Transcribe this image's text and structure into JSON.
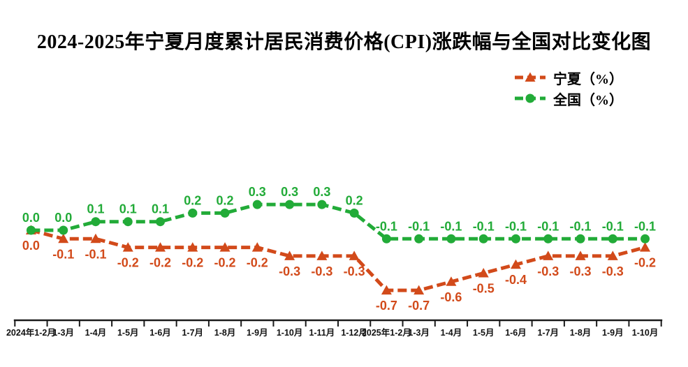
{
  "chart_data": {
    "type": "line",
    "title": "2024-2025年宁夏月度累计居民消费价格(CPI)涨跌幅与全国对比变化图",
    "categories": [
      "2024年1-2月",
      "1-3月",
      "1-4月",
      "1-5月",
      "1-6月",
      "1-7月",
      "1-8月",
      "1-9月",
      "1-10月",
      "1-11月",
      "1-12月",
      "2025年1-2月",
      "1-3月",
      "1-4月",
      "1-5月",
      "1-6月",
      "1-7月",
      "1-8月",
      "1-9月",
      "1-10月"
    ],
    "series": [
      {
        "name": "宁夏（%）",
        "color": "#d24a1a",
        "marker": "triangle",
        "label_position": "below",
        "values": [
          0.0,
          -0.1,
          -0.1,
          -0.2,
          -0.2,
          -0.2,
          -0.2,
          -0.2,
          -0.3,
          -0.3,
          -0.3,
          -0.7,
          -0.7,
          -0.6,
          -0.5,
          -0.4,
          -0.3,
          -0.3,
          -0.3,
          -0.2
        ]
      },
      {
        "name": "全国（%）",
        "color": "#22ab38",
        "marker": "circle",
        "label_position": "above",
        "values": [
          0.0,
          0.0,
          0.1,
          0.1,
          0.1,
          0.2,
          0.2,
          0.3,
          0.3,
          0.3,
          0.2,
          -0.1,
          -0.1,
          -0.1,
          -0.1,
          -0.1,
          -0.1,
          -0.1,
          -0.1,
          -0.1
        ]
      }
    ],
    "xlabel": "",
    "ylabel": "",
    "ylim": [
      -0.8,
      0.4
    ],
    "grid": false,
    "y_axis_visible": false,
    "legend_position": "top-right",
    "line_style": "dashed",
    "data_labels": true,
    "label_decimals": 1,
    "axis_color": "#1a1a1a"
  }
}
